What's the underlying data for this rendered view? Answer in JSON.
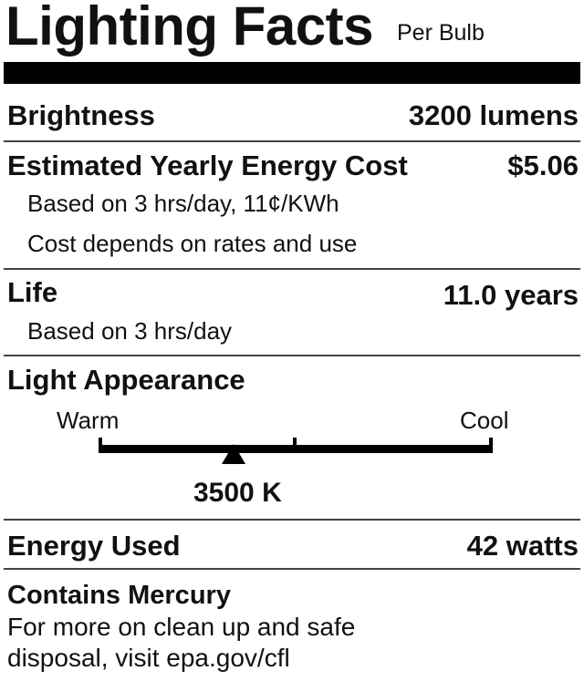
{
  "header": {
    "title": "Lighting Facts",
    "subtitle": "Per Bulb"
  },
  "brightness": {
    "label": "Brightness",
    "value": "3200 lumens"
  },
  "cost": {
    "label": "Estimated Yearly Energy Cost",
    "value": "$5.06",
    "note1": "Based on 3 hrs/day, 11¢/KWh",
    "note2": "Cost depends on rates and use"
  },
  "life": {
    "label": "Life",
    "value": "11.0 years",
    "note": "Based on 3 hrs/day"
  },
  "appearance": {
    "label": "Light Appearance",
    "warm": "Warm",
    "cool": "Cool",
    "value": "3500 K",
    "scale_fraction": 0.34
  },
  "energy": {
    "label": "Energy Used",
    "value": "42 watts"
  },
  "mercury": {
    "label": "Contains Mercury",
    "line1": "For more on clean up and safe",
    "line2": "disposal, visit epa.gov/cfl"
  }
}
